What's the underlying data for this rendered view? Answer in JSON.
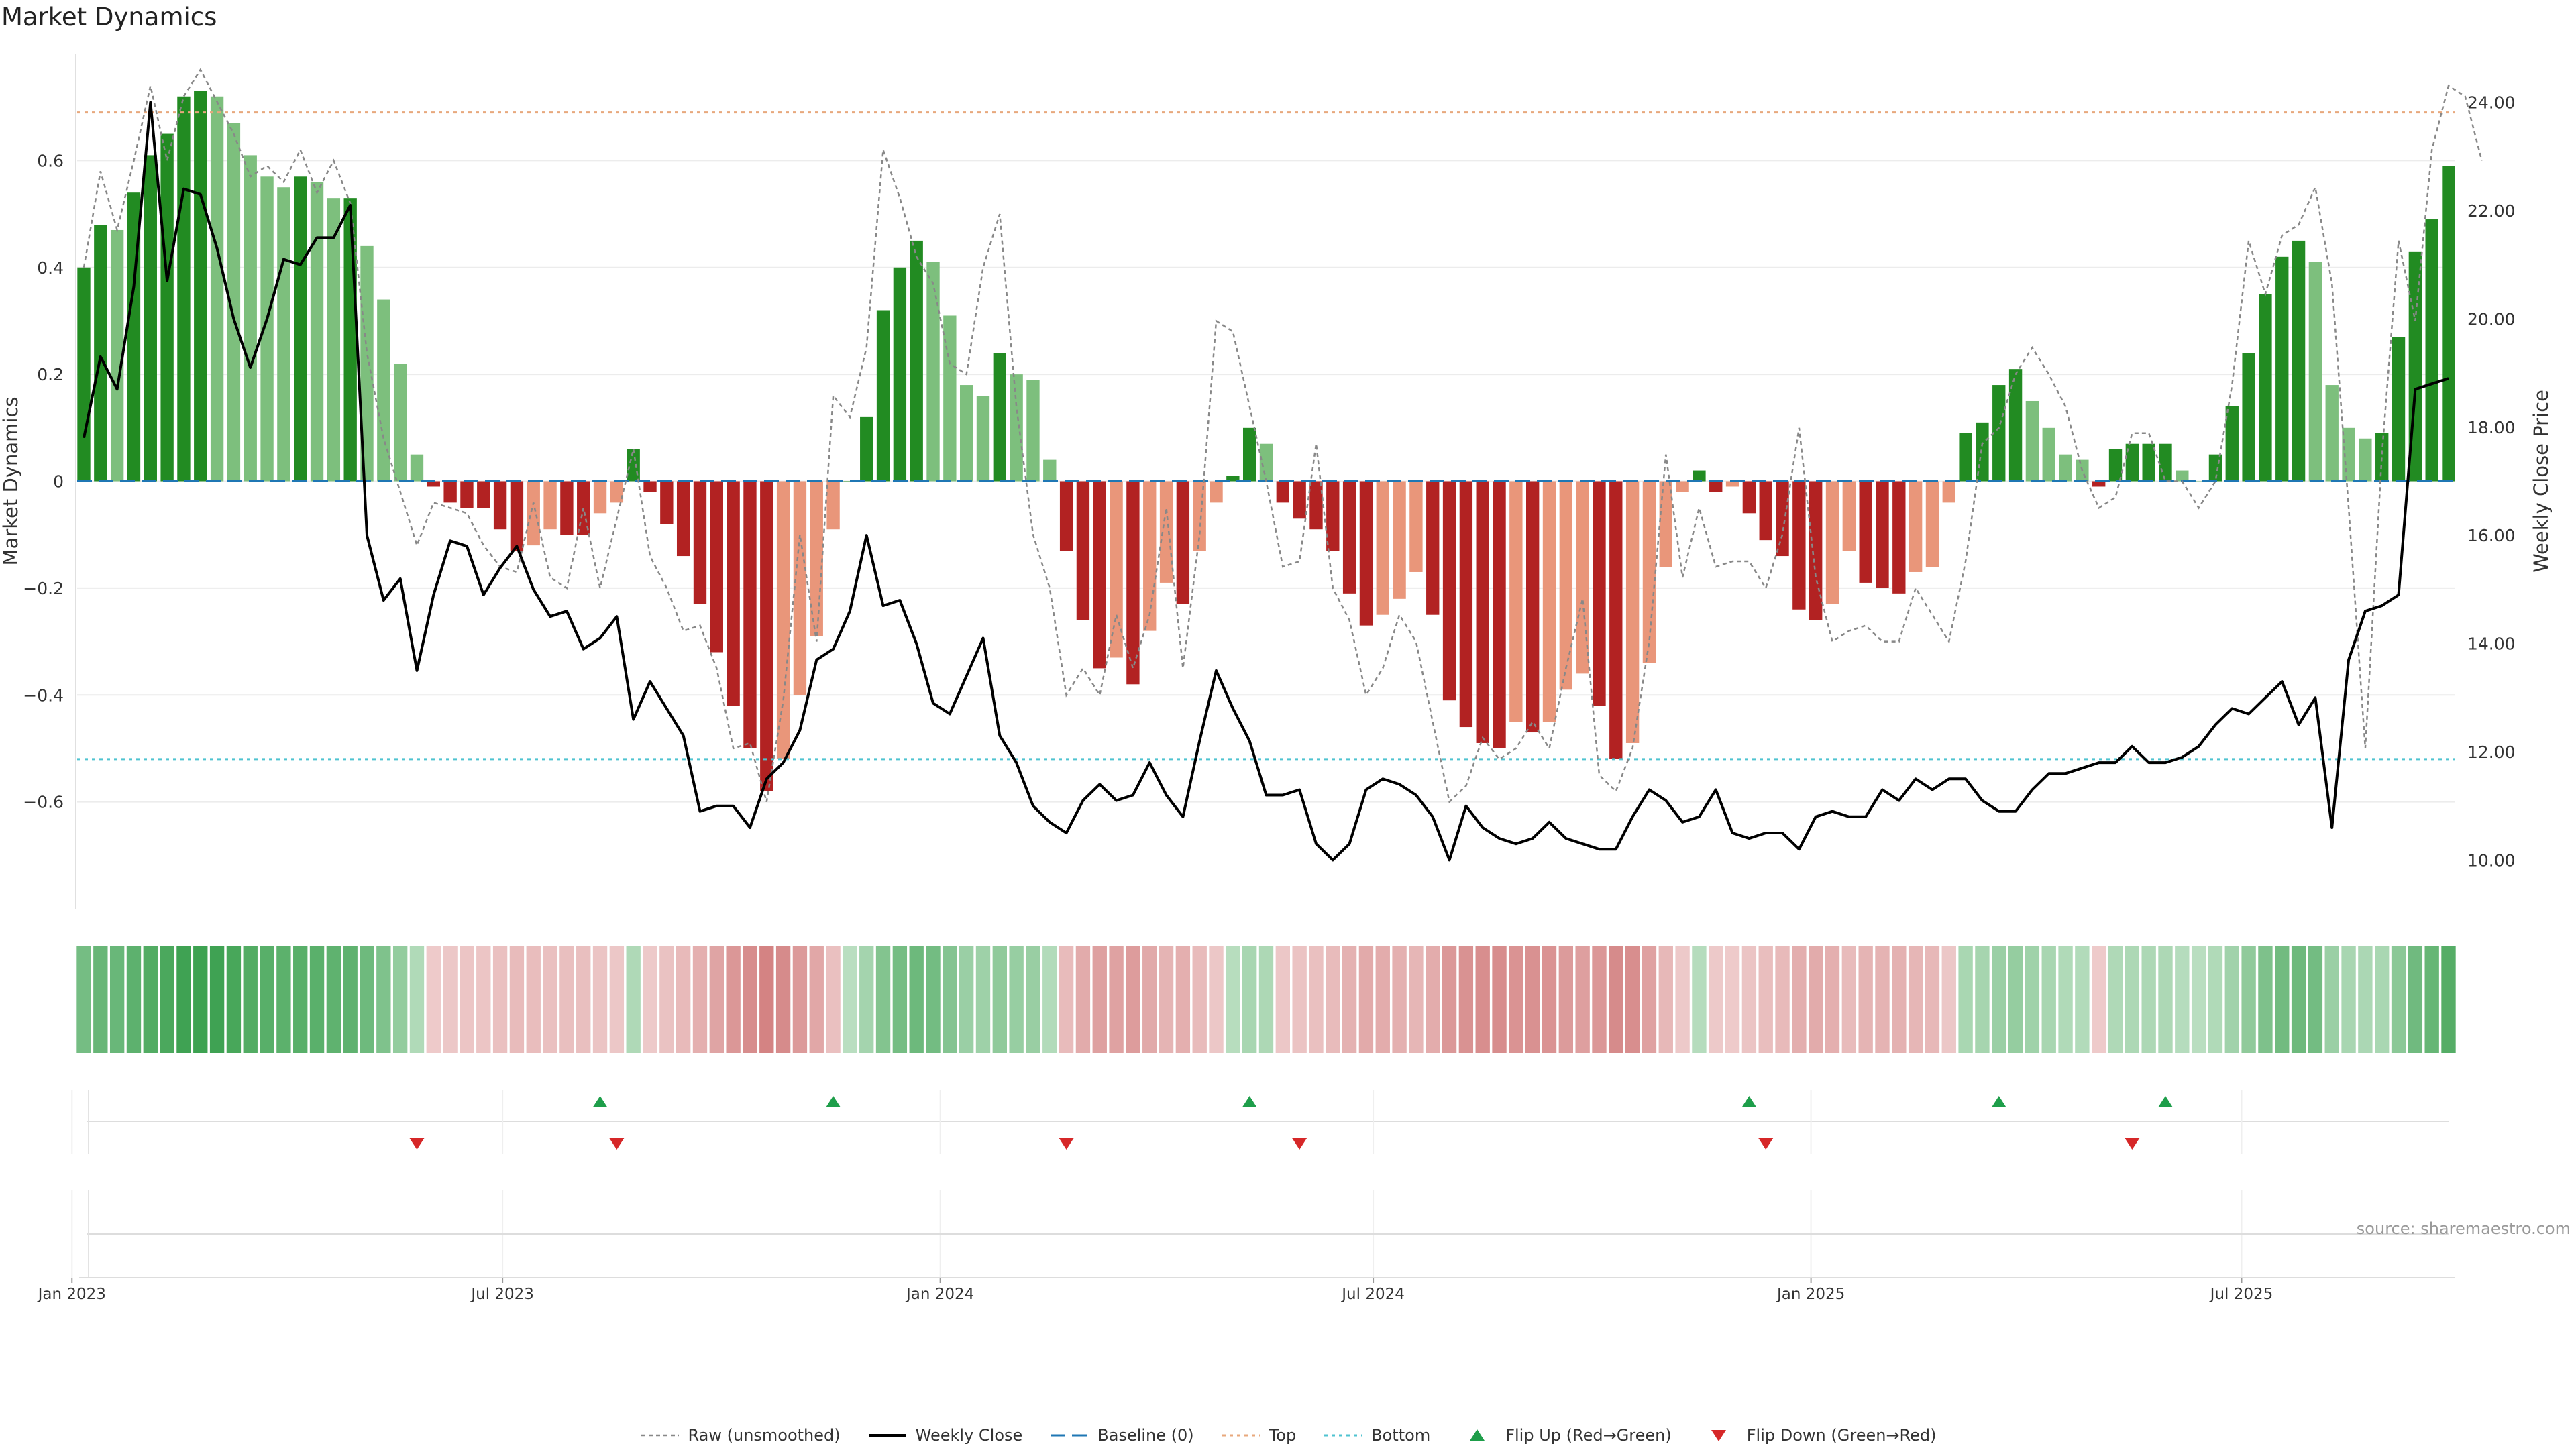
{
  "title": "Market Dynamics",
  "source": "source: sharemaestro.com",
  "colors": {
    "green_dark": "#228B22",
    "green_light": "#7DBF7D",
    "red_dark": "#B22222",
    "red_light": "#E9967A",
    "close_line": "#000000",
    "raw_line": "#888888",
    "baseline": "#1f77b4",
    "top": "#E8A87C",
    "bottom": "#4FC3D0",
    "flip_up": "#1E9E4A",
    "flip_down": "#D62728"
  },
  "legend": [
    {
      "key": "raw",
      "label": "Raw (unsmoothed)"
    },
    {
      "key": "close",
      "label": "Weekly Close"
    },
    {
      "key": "baseline",
      "label": "Baseline (0)"
    },
    {
      "key": "top",
      "label": "Top"
    },
    {
      "key": "bottom",
      "label": "Bottom"
    },
    {
      "key": "flip_up",
      "label": "Flip Up (Red→Green)"
    },
    {
      "key": "flip_down",
      "label": "Flip Down (Green→Red)"
    }
  ],
  "chart_data": {
    "type": "bar",
    "title": "Market Dynamics",
    "ylabel": "Market Dynamics",
    "y2label": "Weekly Close Price",
    "ylim": [
      -0.8,
      0.8
    ],
    "y2lim": [
      9.1,
      24.9
    ],
    "yticks": [
      -0.6,
      -0.4,
      -0.2,
      0,
      0.2,
      0.4,
      0.6
    ],
    "ytick_labels": [
      "−0.6",
      "−0.4",
      "−0.2",
      "0",
      "0.2",
      "0.4",
      "0.6"
    ],
    "y2ticks": [
      10,
      12,
      14,
      16,
      18,
      20,
      22,
      24
    ],
    "y2tick_labels": [
      "10.00",
      "12.00",
      "14.00",
      "16.00",
      "18.00",
      "20.00",
      "22.00",
      "24.00"
    ],
    "x_start": "2023-01-06",
    "x_end": "2025-09-26",
    "x_interval_days": 7,
    "xtick_labels": [
      "Jan 2023",
      "Jul 2023",
      "Jan 2024",
      "Jul 2024",
      "Jan 2025",
      "Jul 2025"
    ],
    "xtick_dates": [
      "2023-01-01",
      "2023-07-01",
      "2024-01-01",
      "2024-07-01",
      "2025-01-01",
      "2025-07-01"
    ],
    "top_level": 0.69,
    "bottom_level": -0.52,
    "baseline": 0,
    "grid": true,
    "legend_position": "bottom-center",
    "market_dynamics": [
      0.4,
      0.48,
      0.47,
      0.54,
      0.61,
      0.65,
      0.72,
      0.73,
      0.72,
      0.67,
      0.61,
      0.57,
      0.55,
      0.57,
      0.56,
      0.53,
      0.53,
      0.44,
      0.34,
      0.22,
      0.05,
      -0.01,
      -0.04,
      -0.05,
      -0.05,
      -0.09,
      -0.13,
      -0.12,
      -0.09,
      -0.1,
      -0.1,
      -0.06,
      -0.04,
      0.06,
      -0.02,
      -0.08,
      -0.14,
      -0.23,
      -0.32,
      -0.42,
      -0.5,
      -0.58,
      -0.52,
      -0.4,
      -0.29,
      -0.09,
      0.0,
      0.12,
      0.32,
      0.4,
      0.45,
      0.41,
      0.31,
      0.18,
      0.16,
      0.24,
      0.2,
      0.19,
      0.04,
      -0.13,
      -0.26,
      -0.35,
      -0.33,
      -0.38,
      -0.28,
      -0.19,
      -0.23,
      -0.13,
      -0.04,
      0.01,
      0.1,
      0.07,
      -0.04,
      -0.07,
      -0.09,
      -0.13,
      -0.21,
      -0.27,
      -0.25,
      -0.22,
      -0.17,
      -0.25,
      -0.41,
      -0.46,
      -0.49,
      -0.5,
      -0.45,
      -0.47,
      -0.45,
      -0.39,
      -0.36,
      -0.42,
      -0.52,
      -0.49,
      -0.34,
      -0.16,
      -0.02,
      0.02,
      -0.02,
      -0.01,
      -0.06,
      -0.11,
      -0.14,
      -0.24,
      -0.26,
      -0.23,
      -0.13,
      -0.19,
      -0.2,
      -0.21,
      -0.17,
      -0.16,
      -0.04,
      0.09,
      0.11,
      0.18,
      0.21,
      0.15,
      0.1,
      0.05,
      0.04,
      -0.01,
      0.06,
      0.07,
      0.07,
      0.07,
      0.02,
      0.0,
      0.05,
      0.14,
      0.24,
      0.35,
      0.42,
      0.45,
      0.41,
      0.18,
      0.1,
      0.08,
      0.09,
      0.27,
      0.43,
      0.49,
      0.59
    ],
    "raw": [
      0.4,
      0.58,
      0.47,
      0.6,
      0.74,
      0.6,
      0.72,
      0.77,
      0.71,
      0.65,
      0.57,
      0.59,
      0.56,
      0.62,
      0.54,
      0.6,
      0.52,
      0.24,
      0.08,
      -0.02,
      -0.12,
      -0.04,
      -0.05,
      -0.06,
      -0.12,
      -0.16,
      -0.17,
      -0.04,
      -0.18,
      -0.2,
      -0.05,
      -0.2,
      -0.07,
      0.06,
      -0.14,
      -0.2,
      -0.28,
      -0.27,
      -0.35,
      -0.5,
      -0.49,
      -0.6,
      -0.41,
      -0.1,
      -0.3,
      0.16,
      0.12,
      0.25,
      0.62,
      0.53,
      0.42,
      0.37,
      0.22,
      0.2,
      0.4,
      0.5,
      0.14,
      -0.1,
      -0.2,
      -0.4,
      -0.35,
      -0.4,
      -0.25,
      -0.35,
      -0.25,
      -0.05,
      -0.35,
      -0.1,
      0.3,
      0.28,
      0.14,
      0.0,
      -0.16,
      -0.15,
      0.07,
      -0.2,
      -0.26,
      -0.4,
      -0.35,
      -0.25,
      -0.3,
      -0.45,
      -0.6,
      -0.57,
      -0.48,
      -0.52,
      -0.5,
      -0.45,
      -0.5,
      -0.35,
      -0.22,
      -0.55,
      -0.58,
      -0.5,
      -0.3,
      0.05,
      -0.18,
      -0.05,
      -0.16,
      -0.15,
      -0.15,
      -0.2,
      -0.1,
      0.1,
      -0.18,
      -0.3,
      -0.28,
      -0.27,
      -0.3,
      -0.3,
      -0.2,
      -0.25,
      -0.3,
      -0.15,
      0.07,
      0.1,
      0.2,
      0.25,
      0.2,
      0.14,
      0.02,
      -0.05,
      -0.03,
      0.09,
      0.09,
      0.0,
      0.0,
      -0.05,
      0.0,
      0.18,
      0.45,
      0.35,
      0.46,
      0.48,
      0.55,
      0.37,
      -0.05,
      -0.5,
      0.05,
      0.45,
      0.3,
      0.62,
      0.74,
      0.72,
      0.6
    ],
    "weekly_close": [
      17.8,
      19.3,
      18.7,
      20.6,
      24.0,
      20.7,
      22.4,
      22.3,
      21.3,
      20.0,
      19.1,
      20.0,
      21.1,
      21.0,
      21.5,
      21.5,
      22.1,
      16.0,
      14.8,
      15.2,
      13.5,
      14.9,
      15.9,
      15.8,
      14.9,
      15.4,
      15.8,
      15.0,
      14.5,
      14.6,
      13.9,
      14.1,
      14.5,
      12.6,
      13.3,
      12.8,
      12.3,
      10.9,
      11.0,
      11.0,
      10.6,
      11.5,
      11.8,
      12.4,
      13.7,
      13.9,
      14.6,
      16.0,
      14.7,
      14.8,
      14.0,
      12.9,
      12.7,
      13.4,
      14.1,
      12.3,
      11.8,
      11.0,
      10.7,
      10.5,
      11.1,
      11.4,
      11.1,
      11.2,
      11.8,
      11.2,
      10.8,
      12.2,
      13.5,
      12.8,
      12.2,
      11.2,
      11.2,
      11.3,
      10.3,
      10.0,
      10.3,
      11.3,
      11.5,
      11.4,
      11.2,
      10.8,
      10.0,
      11.0,
      10.6,
      10.4,
      10.3,
      10.4,
      10.7,
      10.4,
      10.3,
      10.2,
      10.2,
      10.8,
      11.3,
      11.1,
      10.7,
      10.8,
      11.3,
      10.5,
      10.4,
      10.5,
      10.5,
      10.2,
      10.8,
      10.9,
      10.8,
      10.8,
      11.3,
      11.1,
      11.5,
      11.3,
      11.5,
      11.5,
      11.1,
      10.9,
      10.9,
      11.3,
      11.6,
      11.6,
      11.7,
      11.8,
      11.8,
      12.1,
      11.8,
      11.8,
      11.9,
      12.1,
      12.5,
      12.8,
      12.7,
      13.0,
      13.3,
      12.5,
      13.0,
      10.6,
      13.7,
      14.6,
      14.7,
      14.9,
      18.7,
      18.8,
      18.9
    ],
    "flip_up_dates": [
      "2023-08-11",
      "2023-11-17",
      "2024-05-10",
      "2024-12-06",
      "2025-03-21",
      "2025-05-30"
    ],
    "flip_down_dates": [
      "2023-05-26",
      "2023-08-18",
      "2024-02-23",
      "2024-05-31",
      "2024-12-13",
      "2025-05-16"
    ]
  }
}
